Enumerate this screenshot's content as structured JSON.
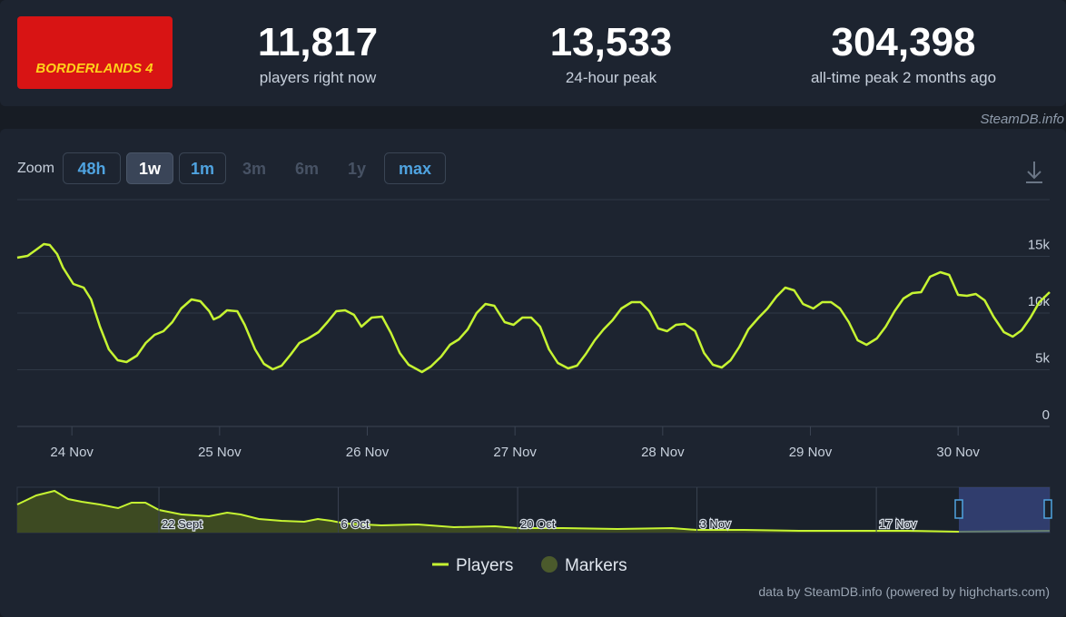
{
  "header": {
    "logo_text": "BORDERLANDS 4",
    "stats": [
      {
        "value": "11,817",
        "label": "players right now"
      },
      {
        "value": "13,533",
        "label": "24-hour peak"
      },
      {
        "value": "304,398",
        "label": "all-time peak 2 months ago"
      }
    ],
    "source": "SteamDB.info"
  },
  "zoom": {
    "label": "Zoom",
    "buttons": [
      "48h",
      "1w",
      "1m",
      "3m",
      "6m",
      "1y",
      "max"
    ]
  },
  "credit": "data by SteamDB.info (powered by highcharts.com)",
  "chart_data": [
    {
      "type": "line",
      "grid": true,
      "x": [
        23.63,
        23.7,
        23.76,
        23.81,
        23.85,
        23.9,
        23.94,
        24.01,
        24.08,
        24.13,
        24.19,
        24.25,
        24.31,
        24.37,
        24.44,
        24.5,
        24.56,
        24.62,
        24.68,
        24.74,
        24.81,
        24.87,
        24.93,
        24.96,
        25.0,
        25.05,
        25.12,
        25.17,
        25.24,
        25.3,
        25.36,
        25.42,
        25.48,
        25.54,
        25.6,
        25.67,
        25.73,
        25.79,
        25.85,
        25.91,
        25.96,
        26.03,
        26.1,
        26.16,
        26.22,
        26.28,
        26.37,
        26.43,
        26.5,
        26.56,
        26.62,
        26.68,
        26.74,
        26.8,
        26.86,
        26.93,
        26.99,
        27.05,
        27.11,
        27.17,
        27.23,
        27.29,
        27.36,
        27.42,
        27.48,
        27.54,
        27.6,
        27.66,
        27.72,
        27.79,
        27.85,
        27.91,
        27.97,
        28.03,
        28.09,
        28.15,
        28.22,
        28.28,
        28.34,
        28.4,
        28.46,
        28.52,
        28.58,
        28.65,
        28.71,
        28.77,
        28.83,
        28.89,
        28.95,
        29.02,
        29.08,
        29.14,
        29.2,
        29.26,
        29.32,
        29.38,
        29.45,
        29.51,
        29.57,
        29.63,
        29.69,
        29.75,
        29.81,
        29.88,
        29.94,
        30.0,
        30.06,
        30.12,
        30.18,
        30.24,
        30.31,
        30.37,
        30.43,
        30.49,
        30.55,
        30.62
      ],
      "series": [
        {
          "name": "Players",
          "color": "#c6f432",
          "values": [
            14880,
            15040,
            15600,
            16080,
            16000,
            15200,
            14000,
            12560,
            12240,
            11200,
            8800,
            6800,
            5840,
            5680,
            6240,
            7360,
            8080,
            8400,
            9200,
            10400,
            11200,
            11040,
            10160,
            9440,
            9680,
            10240,
            10160,
            8960,
            6800,
            5520,
            5040,
            5360,
            6320,
            7360,
            7760,
            8320,
            9200,
            10160,
            10240,
            9840,
            8800,
            9600,
            9680,
            8240,
            6480,
            5440,
            4800,
            5280,
            6160,
            7200,
            7680,
            8560,
            10000,
            10800,
            10640,
            9200,
            8960,
            9600,
            9600,
            8800,
            6800,
            5600,
            5120,
            5360,
            6400,
            7600,
            8560,
            9360,
            10400,
            10960,
            10960,
            10160,
            8640,
            8400,
            8960,
            9040,
            8400,
            6480,
            5440,
            5200,
            5840,
            7040,
            8560,
            9600,
            10400,
            11440,
            12240,
            12000,
            10800,
            10400,
            10960,
            10960,
            10400,
            9200,
            7600,
            7200,
            7760,
            8800,
            10160,
            11280,
            11760,
            11840,
            13200,
            13600,
            13360,
            11600,
            11520,
            11680,
            11120,
            9680,
            8320,
            7920,
            8480,
            9600,
            10960,
            11840
          ]
        }
      ],
      "markers_legend": {
        "name": "Markers",
        "color": "#4b5a2c"
      },
      "xlim": [
        23.63,
        30.62
      ],
      "ylim": [
        0,
        20000
      ],
      "xticks": [
        {
          "value": 24,
          "label": "24 Nov"
        },
        {
          "value": 25,
          "label": "25 Nov"
        },
        {
          "value": 26,
          "label": "26 Nov"
        },
        {
          "value": 27,
          "label": "27 Nov"
        },
        {
          "value": 28,
          "label": "28 Nov"
        },
        {
          "value": 29,
          "label": "29 Nov"
        },
        {
          "value": 30,
          "label": "30 Nov"
        }
      ],
      "yticks": [
        0,
        {
          "value": 5000,
          "label": "5k"
        },
        {
          "value": 10000,
          "label": "10k"
        },
        {
          "value": 15000,
          "label": "15k"
        }
      ]
    },
    {
      "type": "area",
      "color": "#c6f432",
      "fill": "#3d4a22",
      "x": [
        253.94,
        255.43,
        256.85,
        257.91,
        258.98,
        260.39,
        261.81,
        262.87,
        263.94,
        265,
        266.77,
        268.9,
        270.32,
        271.38,
        272.8,
        274.57,
        276.34,
        277.4,
        278.47,
        279.53,
        282.36,
        285.2,
        288.03,
        291.22,
        293.0,
        296.54,
        300.79,
        305.04,
        306.96,
        310.71,
        314.96,
        319.22,
        323.47,
        327.44,
        334.53
      ],
      "values": [
        204600,
        270600,
        303600,
        244200,
        224400,
        204600,
        178200,
        217800,
        217800,
        165000,
        132000,
        118800,
        145200,
        132000,
        99000,
        85800,
        79200,
        99000,
        85800,
        66000,
        52800,
        59400,
        39600,
        46200,
        33000,
        33000,
        26400,
        33000,
        19800,
        19800,
        13200,
        13200,
        13200,
        6600,
        13200
      ],
      "xlim": [
        253.94,
        334.53
      ],
      "ylim": [
        0,
        330000
      ],
      "xticks": [
        {
          "value": 265,
          "label": "22 Sept"
        },
        {
          "value": 279,
          "label": "6 Oct"
        },
        {
          "value": 293,
          "label": "20 Oct"
        },
        {
          "value": 307,
          "label": "3 Nov"
        },
        {
          "value": 321,
          "label": "17 Nov"
        }
      ]
    }
  ]
}
